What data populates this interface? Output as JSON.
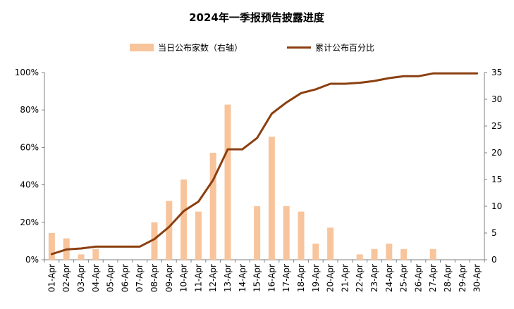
{
  "chart_data": {
    "type": "bar+line",
    "title": "2024年一季报预告披露进度",
    "categories": [
      "01-Apr",
      "02-Apr",
      "03-Apr",
      "04-Apr",
      "05-Apr",
      "06-Apr",
      "07-Apr",
      "08-Apr",
      "09-Apr",
      "10-Apr",
      "11-Apr",
      "12-Apr",
      "13-Apr",
      "14-Apr",
      "15-Apr",
      "16-Apr",
      "17-Apr",
      "18-Apr",
      "19-Apr",
      "20-Apr",
      "21-Apr",
      "22-Apr",
      "23-Apr",
      "24-Apr",
      "25-Apr",
      "26-Apr",
      "27-Apr",
      "28-Apr",
      "29-Apr",
      "30-Apr"
    ],
    "series": [
      {
        "name": "当日公布家数（右轴）",
        "type": "bar",
        "axis": "right",
        "color": "#F8C49C",
        "values": [
          5,
          4,
          1,
          2,
          0,
          0,
          0,
          7,
          11,
          15,
          9,
          20,
          29,
          0,
          10,
          23,
          10,
          9,
          3,
          6,
          0,
          1,
          2,
          3,
          2,
          0,
          2,
          0,
          0,
          0
        ]
      },
      {
        "name": "累计公布百分比",
        "type": "line",
        "axis": "left",
        "color": "#8B3F10",
        "values": [
          3,
          5.5,
          6,
          7,
          7,
          7,
          7,
          11,
          17.5,
          26,
          31,
          42.5,
          59,
          59,
          65,
          78,
          84,
          89,
          91,
          94,
          94,
          94.5,
          95.5,
          97,
          98,
          98,
          99.5,
          99.5,
          99.5,
          99.5
        ]
      }
    ],
    "left_axis": {
      "range": [
        0,
        100
      ],
      "ticks": [
        "0%",
        "20%",
        "40%",
        "60%",
        "80%",
        "100%"
      ]
    },
    "right_axis": {
      "range": [
        0,
        35
      ],
      "ticks": [
        "0",
        "5",
        "10",
        "15",
        "20",
        "25",
        "30",
        "35"
      ]
    },
    "legend_position": "top-center",
    "grid": false
  }
}
